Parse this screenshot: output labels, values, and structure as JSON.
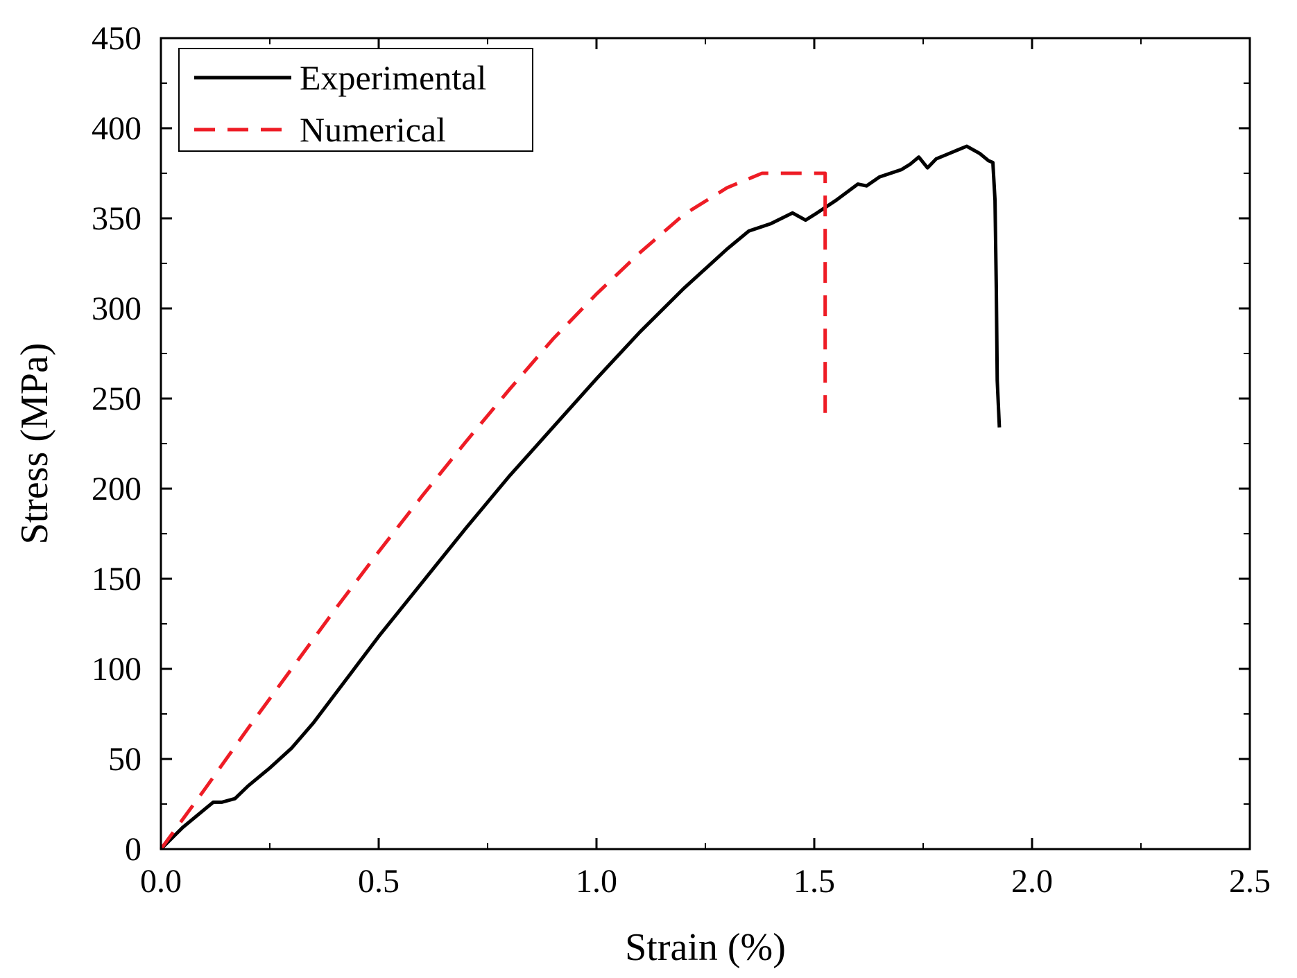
{
  "chart_data": {
    "type": "line",
    "title": "",
    "xlabel": "Strain (%)",
    "ylabel": "Stress (MPa)",
    "xlim": [
      0,
      2.5
    ],
    "ylim": [
      0,
      450
    ],
    "grid": false,
    "legend_position": "top-left",
    "x_ticks": [
      0.0,
      0.5,
      1.0,
      1.5,
      2.0,
      2.5
    ],
    "x_tick_labels": [
      "0.0",
      "0.5",
      "1.0",
      "1.5",
      "2.0",
      "2.5"
    ],
    "x_minor_ticks": [
      0.25,
      0.75,
      1.25,
      1.75,
      2.25
    ],
    "y_ticks": [
      0,
      50,
      100,
      150,
      200,
      250,
      300,
      350,
      400,
      450
    ],
    "y_tick_labels": [
      "0",
      "50",
      "100",
      "150",
      "200",
      "250",
      "300",
      "350",
      "400",
      "450"
    ],
    "y_minor_ticks": [
      25,
      75,
      125,
      175,
      225,
      275,
      325,
      375,
      425
    ],
    "series": [
      {
        "name": "Experimental",
        "color": "#000000",
        "style": "solid",
        "points": [
          [
            0,
            0
          ],
          [
            0.05,
            12
          ],
          [
            0.1,
            22
          ],
          [
            0.12,
            26
          ],
          [
            0.14,
            26
          ],
          [
            0.17,
            28
          ],
          [
            0.2,
            35
          ],
          [
            0.25,
            45
          ],
          [
            0.3,
            56
          ],
          [
            0.35,
            70
          ],
          [
            0.4,
            86
          ],
          [
            0.45,
            102
          ],
          [
            0.5,
            118
          ],
          [
            0.6,
            148
          ],
          [
            0.7,
            178
          ],
          [
            0.8,
            207
          ],
          [
            0.9,
            234
          ],
          [
            1.0,
            261
          ],
          [
            1.1,
            287
          ],
          [
            1.2,
            311
          ],
          [
            1.3,
            333
          ],
          [
            1.35,
            343
          ],
          [
            1.4,
            347
          ],
          [
            1.45,
            353
          ],
          [
            1.48,
            349
          ],
          [
            1.5,
            352
          ],
          [
            1.55,
            360
          ],
          [
            1.6,
            369
          ],
          [
            1.62,
            368
          ],
          [
            1.65,
            373
          ],
          [
            1.7,
            377
          ],
          [
            1.72,
            380
          ],
          [
            1.74,
            384
          ],
          [
            1.76,
            378
          ],
          [
            1.78,
            383
          ],
          [
            1.8,
            385
          ],
          [
            1.83,
            388
          ],
          [
            1.85,
            390
          ],
          [
            1.88,
            386
          ],
          [
            1.9,
            382
          ],
          [
            1.91,
            381
          ],
          [
            1.915,
            360
          ],
          [
            1.918,
            310
          ],
          [
            1.92,
            260
          ],
          [
            1.925,
            234
          ]
        ]
      },
      {
        "name": "Numerical",
        "color": "#ee1c25",
        "style": "dashed",
        "points": [
          [
            0,
            0
          ],
          [
            0.1,
            33
          ],
          [
            0.2,
            67
          ],
          [
            0.3,
            100
          ],
          [
            0.4,
            133
          ],
          [
            0.5,
            165
          ],
          [
            0.6,
            196
          ],
          [
            0.7,
            226
          ],
          [
            0.8,
            255
          ],
          [
            0.9,
            283
          ],
          [
            1.0,
            308
          ],
          [
            1.1,
            331
          ],
          [
            1.2,
            352
          ],
          [
            1.3,
            367
          ],
          [
            1.35,
            372
          ],
          [
            1.38,
            375
          ],
          [
            1.5,
            375
          ],
          [
            1.525,
            375
          ],
          [
            1.525,
            242
          ]
        ]
      }
    ]
  }
}
